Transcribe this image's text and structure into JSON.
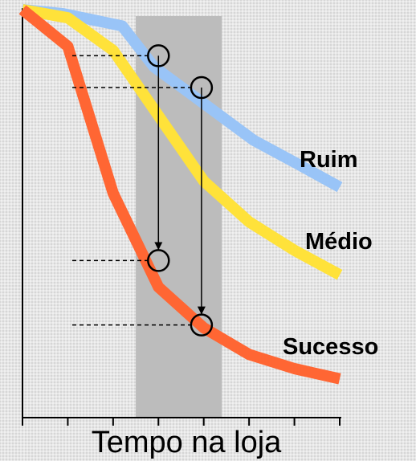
{
  "chart_data": {
    "type": "line",
    "title": "",
    "xlabel": "Tempo na loja",
    "ylabel": "",
    "x": [
      0,
      1,
      2,
      3,
      4,
      5,
      6,
      7
    ],
    "xlim": [
      0,
      7
    ],
    "ylim": [
      0,
      100
    ],
    "grid": false,
    "highlight_band": {
      "x_range": [
        2.5,
        4.4
      ],
      "color": "#bcbcbc"
    },
    "series": [
      {
        "name": "Ruim",
        "color": "#99c4f7",
        "points": [
          [
            0,
            100
          ],
          [
            0.9,
            99
          ],
          [
            2.2,
            96
          ],
          [
            2.9,
            86
          ],
          [
            4,
            77
          ],
          [
            5.1,
            68
          ],
          [
            6.1,
            62
          ],
          [
            7,
            56.5
          ]
        ]
      },
      {
        "name": "Médio",
        "color": "#ffe23a",
        "points": [
          [
            0,
            100
          ],
          [
            1,
            98
          ],
          [
            2,
            90
          ],
          [
            3,
            74
          ],
          [
            4,
            58
          ],
          [
            5,
            48
          ],
          [
            6,
            41
          ],
          [
            7,
            35
          ]
        ]
      },
      {
        "name": "Sucesso",
        "color": "#ff6633",
        "points": [
          [
            0,
            100
          ],
          [
            1,
            91
          ],
          [
            2,
            55
          ],
          [
            3,
            32
          ],
          [
            4,
            22
          ],
          [
            5,
            15.5
          ],
          [
            6,
            12
          ],
          [
            7,
            9.5
          ]
        ]
      }
    ],
    "markers": [
      {
        "from": [
          3,
          88.7
        ],
        "to": [
          3,
          38.5
        ]
      },
      {
        "from": [
          3.95,
          80.9
        ],
        "to": [
          3.95,
          22.7
        ]
      }
    ]
  }
}
